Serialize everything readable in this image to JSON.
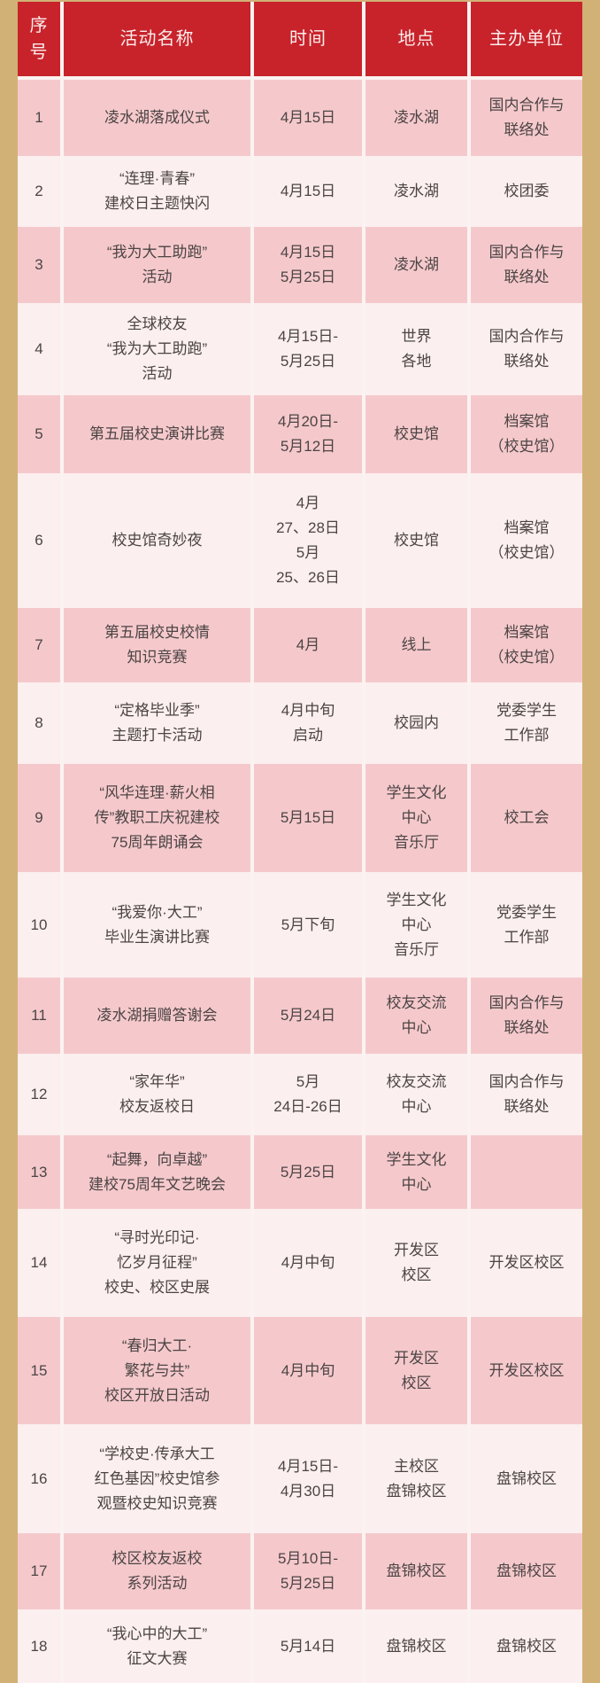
{
  "colors": {
    "page_background": "#D2B176",
    "header_background": "#C8232B",
    "header_text": "#FCEDEC",
    "row_pink": "#F5C9CC",
    "row_light": "#FBEFEF",
    "grid_line": "#FAF3F1",
    "body_text": "#4C4444"
  },
  "table": {
    "columns": [
      "序号",
      "活动名称",
      "时间",
      "地点",
      "主办单位"
    ],
    "rows": [
      {
        "no": "1",
        "name": [
          "凌水湖落成仪式"
        ],
        "time": [
          "4月15日"
        ],
        "location": [
          "凌水湖"
        ],
        "organizer": [
          "国内合作与",
          "联络处"
        ]
      },
      {
        "no": "2",
        "name": [
          "“连理·青春”",
          "建校日主题快闪"
        ],
        "time": [
          "4月15日"
        ],
        "location": [
          "凌水湖"
        ],
        "organizer": [
          "校团委"
        ]
      },
      {
        "no": "3",
        "name": [
          "“我为大工助跑”",
          "活动"
        ],
        "time": [
          "4月15日",
          "5月25日"
        ],
        "location": [
          "凌水湖"
        ],
        "organizer": [
          "国内合作与",
          "联络处"
        ]
      },
      {
        "no": "4",
        "name": [
          "全球校友",
          "“我为大工助跑”",
          "活动"
        ],
        "time": [
          "4月15日-",
          "5月25日"
        ],
        "location": [
          "世界",
          "各地"
        ],
        "organizer": [
          "国内合作与",
          "联络处"
        ]
      },
      {
        "no": "5",
        "name": [
          "第五届校史演讲比赛"
        ],
        "time": [
          "4月20日-",
          "5月12日"
        ],
        "location": [
          "校史馆"
        ],
        "organizer": [
          "档案馆",
          "（校史馆）"
        ]
      },
      {
        "no": "6",
        "name": [
          "校史馆奇妙夜"
        ],
        "time": [
          "4月",
          "27、28日",
          "5月",
          "25、26日"
        ],
        "location": [
          "校史馆"
        ],
        "organizer": [
          "档案馆",
          "（校史馆）"
        ]
      },
      {
        "no": "7",
        "name": [
          "第五届校史校情",
          "知识竞赛"
        ],
        "time": [
          "4月"
        ],
        "location": [
          "线上"
        ],
        "organizer": [
          "档案馆",
          "（校史馆）"
        ]
      },
      {
        "no": "8",
        "name": [
          "“定格毕业季”",
          "主题打卡活动"
        ],
        "time": [
          "4月中旬",
          "启动"
        ],
        "location": [
          "校园内"
        ],
        "organizer": [
          "党委学生",
          "工作部"
        ]
      },
      {
        "no": "9",
        "name": [
          "“风华连理·薪火相",
          "传”教职工庆祝建校",
          "75周年朗诵会"
        ],
        "time": [
          "5月15日"
        ],
        "location": [
          "学生文化",
          "中心",
          "音乐厅"
        ],
        "organizer": [
          "校工会"
        ]
      },
      {
        "no": "10",
        "name": [
          "“我爱你·大工”",
          "毕业生演讲比赛"
        ],
        "time": [
          "5月下旬"
        ],
        "location": [
          "学生文化",
          "中心",
          "音乐厅"
        ],
        "organizer": [
          "党委学生",
          "工作部"
        ]
      },
      {
        "no": "11",
        "name": [
          "凌水湖捐赠答谢会"
        ],
        "time": [
          "5月24日"
        ],
        "location": [
          "校友交流",
          "中心"
        ],
        "organizer": [
          "国内合作与",
          "联络处"
        ]
      },
      {
        "no": "12",
        "name": [
          "“家年华”",
          "校友返校日"
        ],
        "time": [
          "5月",
          "24日-26日"
        ],
        "location": [
          "校友交流",
          "中心"
        ],
        "organizer": [
          "国内合作与",
          "联络处"
        ]
      },
      {
        "no": "13",
        "name": [
          "“起舞，向卓越”",
          "建校75周年文艺晚会"
        ],
        "time": [
          "5月25日"
        ],
        "location": [
          "学生文化",
          "中心"
        ],
        "organizer": []
      },
      {
        "no": "14",
        "name": [
          "“寻时光印记·",
          "忆岁月征程”",
          "校史、校区史展"
        ],
        "time": [
          "4月中旬"
        ],
        "location": [
          "开发区",
          "校区"
        ],
        "organizer": [
          "开发区校区"
        ]
      },
      {
        "no": "15",
        "name": [
          "“春归大工·",
          "繁花与共”",
          "校区开放日活动"
        ],
        "time": [
          "4月中旬"
        ],
        "location": [
          "开发区",
          "校区"
        ],
        "organizer": [
          "开发区校区"
        ]
      },
      {
        "no": "16",
        "name": [
          "“学校史·传承大工",
          "红色基因”校史馆参",
          "观暨校史知识竞赛"
        ],
        "time": [
          "4月15日-",
          "4月30日"
        ],
        "location": [
          "主校区",
          "盘锦校区"
        ],
        "organizer": [
          "盘锦校区"
        ]
      },
      {
        "no": "17",
        "name": [
          "校区校友返校",
          "系列活动"
        ],
        "time": [
          "5月10日-",
          "5月25日"
        ],
        "location": [
          "盘锦校区"
        ],
        "organizer": [
          "盘锦校区"
        ]
      },
      {
        "no": "18",
        "name": [
          "“我心中的大工”",
          "征文大赛"
        ],
        "time": [
          "5月14日"
        ],
        "location": [
          "盘锦校区"
        ],
        "organizer": [
          "盘锦校区"
        ]
      }
    ]
  }
}
